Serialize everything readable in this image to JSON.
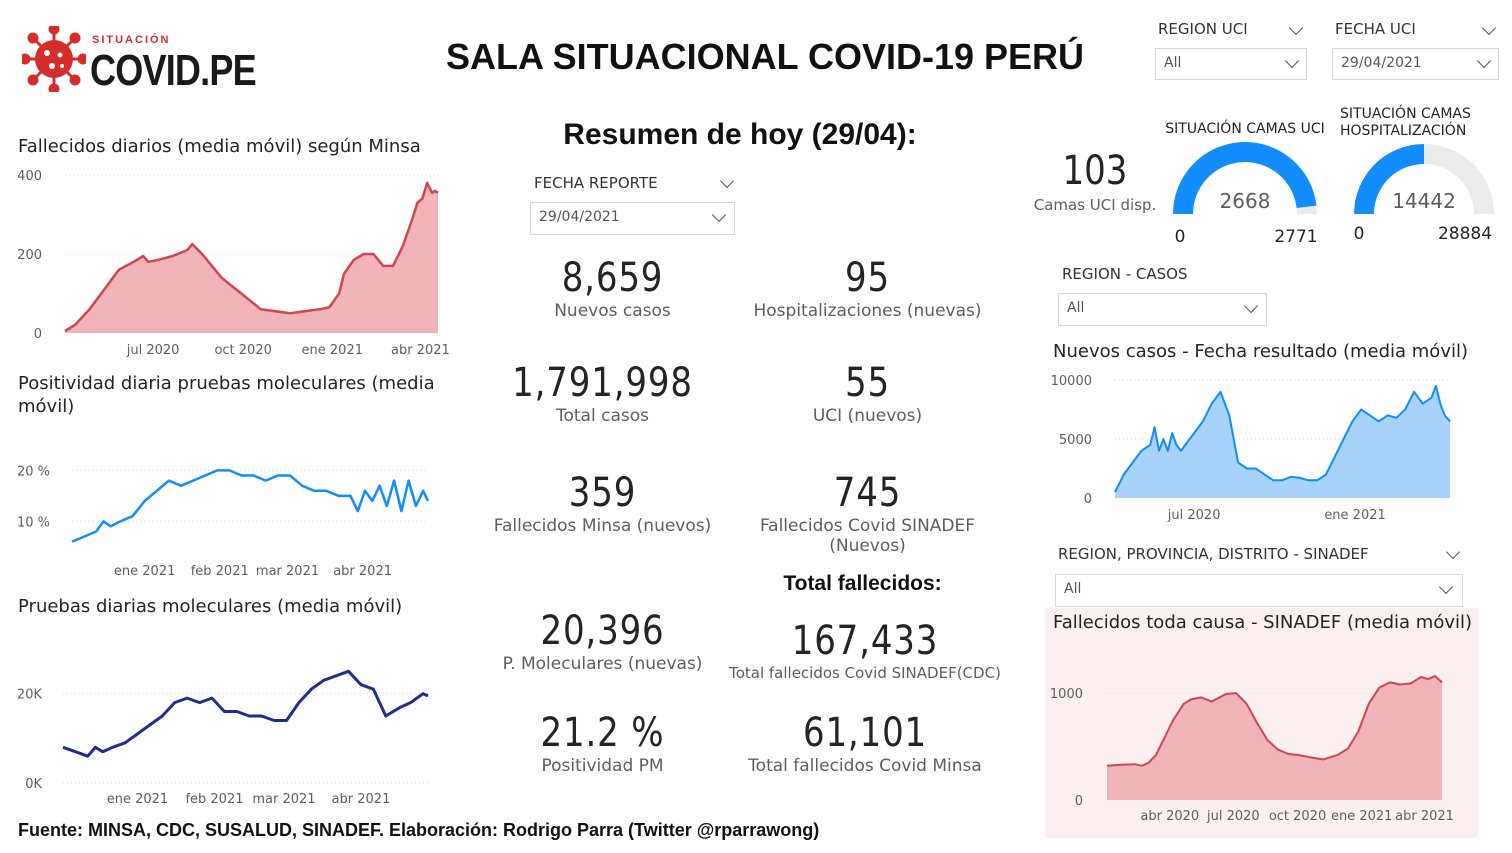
{
  "brand": {
    "small": "SITUACIÓN",
    "big": "COVID.PE"
  },
  "title": "SALA SITUACIONAL COVID-19 PERÚ",
  "slicers": {
    "region_uci": {
      "label": "REGION UCI",
      "value": "All"
    },
    "fecha_uci": {
      "label": "FECHA UCI",
      "value": "29/04/2021"
    },
    "fecha_reporte": {
      "label": "FECHA REPORTE",
      "value": "29/04/2021"
    },
    "region_casos": {
      "label": "REGION - CASOS",
      "value": "All"
    },
    "region_sinadef": {
      "label": "REGION, PROVINCIA, DISTRITO - SINADEF",
      "value": "All"
    }
  },
  "summary": {
    "title": "Resumen de hoy (29/04):",
    "total_title": "Total fallecidos:",
    "kpis": [
      {
        "value": "8,659",
        "label": "Nuevos casos"
      },
      {
        "value": "95",
        "label": "Hospitalizaciones (nuevas)"
      },
      {
        "value": "1,791,998",
        "label": "Total casos"
      },
      {
        "value": "55",
        "label": "UCI (nuevos)"
      },
      {
        "value": "359",
        "label": "Fallecidos Minsa (nuevos)"
      },
      {
        "value": "745",
        "label": "Fallecidos Covid SINADEF (Nuevos)"
      },
      {
        "value": "20,396",
        "label": "P. Moleculares (nuevas)"
      },
      {
        "value": "167,433",
        "label": "Total fallecidos Covid SINADEF(CDC)"
      },
      {
        "value": "21.2 %",
        "label": "Positividad PM"
      },
      {
        "value": "61,101",
        "label": "Total fallecidos Covid Minsa"
      }
    ]
  },
  "uci": {
    "available_value": "103",
    "available_label": "Camas UCI disp.",
    "gauge_uci": {
      "title": "SITUACIÓN CAMAS UCI",
      "value": 2668,
      "min": 0,
      "max": 2771,
      "value_label": "2668",
      "min_label": "0",
      "max_label": "2771"
    },
    "gauge_hosp": {
      "title_1": "SITUACIÓN CAMAS",
      "title_2": "HOSPITALIZACIÓN",
      "value": 14442,
      "min": 0,
      "max": 28884,
      "value_label": "14442",
      "min_label": "0",
      "max_label": "28884"
    }
  },
  "colors": {
    "red_fill": "#f0b4b9",
    "red_line": "#d2464f",
    "blue_light": "#118dff",
    "blue_fill": "#a7d3fb",
    "navy": "#1f2e8f",
    "gauge_blue": "#118dff",
    "gauge_grey": "#ebebeb"
  },
  "footer": "Fuente: MINSA, CDC, SUSALUD, SINADEF. Elaboración: Rodrigo Parra (Twitter @rparrawong)",
  "chart_data": [
    {
      "id": "deaths",
      "type": "area",
      "title": "Fallecidos diarios (media móvil) según Minsa",
      "x_ticks": [
        "jul 2020",
        "oct 2020",
        "ene 2021",
        "abr 2021"
      ],
      "x_tick_pos": [
        90,
        182,
        273,
        363
      ],
      "y_ticks": [
        "400",
        "200",
        "0"
      ],
      "y_tick_vals": [
        400,
        200,
        0
      ],
      "ylim": [
        0,
        400
      ],
      "xlim": [
        0,
        381
      ],
      "x": [
        0,
        10,
        25,
        40,
        55,
        70,
        80,
        85,
        95,
        110,
        125,
        130,
        140,
        150,
        160,
        170,
        185,
        200,
        215,
        230,
        245,
        260,
        270,
        280,
        285,
        295,
        305,
        315,
        325,
        335,
        345,
        355,
        360,
        365,
        370,
        375,
        378,
        381
      ],
      "y": [
        5,
        20,
        60,
        110,
        160,
        180,
        195,
        180,
        185,
        195,
        210,
        225,
        200,
        170,
        140,
        120,
        90,
        60,
        55,
        50,
        55,
        60,
        65,
        100,
        150,
        185,
        200,
        200,
        170,
        170,
        220,
        290,
        330,
        340,
        380,
        355,
        360,
        355
      ]
    },
    {
      "id": "positivity",
      "type": "line",
      "title": "Positividad diaria pruebas moleculares (media móvil)",
      "x_ticks": [
        "ene 2021",
        "feb 2021",
        "mar 2021",
        "abr 2021"
      ],
      "x_tick_pos": [
        30,
        61,
        89,
        120
      ],
      "y_ticks": [
        "20 %",
        "10 %"
      ],
      "y_tick_vals": [
        20,
        10
      ],
      "ylim": [
        3,
        24
      ],
      "xlim": [
        0,
        147
      ],
      "x": [
        0,
        5,
        10,
        13,
        16,
        20,
        25,
        30,
        35,
        40,
        45,
        50,
        55,
        60,
        65,
        70,
        75,
        80,
        85,
        90,
        95,
        100,
        105,
        110,
        115,
        118,
        121,
        124,
        127,
        130,
        133,
        136,
        139,
        142,
        145,
        147
      ],
      "y": [
        6,
        7,
        8,
        10,
        9,
        10,
        11,
        14,
        16,
        18,
        17,
        18,
        19,
        20,
        20,
        19,
        19,
        18,
        19,
        19,
        17,
        16,
        16,
        15,
        15,
        12,
        16,
        14,
        17,
        13,
        18,
        12,
        18,
        13,
        16,
        14
      ]
    },
    {
      "id": "tests",
      "type": "line",
      "title": "Pruebas diarias moleculares (media móvil)",
      "x_ticks": [
        "ene 2021",
        "feb 2021",
        "mar 2021",
        "abr 2021"
      ],
      "x_tick_pos": [
        30,
        61,
        89,
        120
      ],
      "y_ticks": [
        "20K",
        "0K"
      ],
      "y_tick_vals": [
        20000,
        0
      ],
      "ylim": [
        0,
        30000
      ],
      "xlim": [
        0,
        147
      ],
      "x": [
        0,
        5,
        10,
        13,
        16,
        20,
        25,
        30,
        35,
        40,
        45,
        50,
        55,
        60,
        65,
        70,
        75,
        80,
        85,
        90,
        95,
        100,
        105,
        110,
        115,
        120,
        125,
        130,
        133,
        136,
        140,
        145,
        147
      ],
      "y": [
        8000,
        7000,
        6000,
        8000,
        7000,
        8000,
        9000,
        11000,
        13000,
        15000,
        18000,
        19000,
        18000,
        19000,
        16000,
        16000,
        15000,
        15000,
        14000,
        14000,
        18000,
        21000,
        23000,
        24000,
        25000,
        22000,
        21000,
        15000,
        16000,
        17000,
        18000,
        20000,
        19500
      ]
    },
    {
      "id": "cases",
      "type": "area",
      "title": "Nuevos casos - Fecha resultado (media móvil)",
      "x_ticks": [
        "jul 2020",
        "ene 2021"
      ],
      "x_tick_pos": [
        90,
        273
      ],
      "y_ticks": [
        "10000",
        "5000",
        "0"
      ],
      "y_tick_vals": [
        10000,
        5000,
        0
      ],
      "ylim": [
        0,
        10000
      ],
      "xlim": [
        0,
        381
      ],
      "x": [
        0,
        10,
        20,
        30,
        40,
        45,
        50,
        55,
        60,
        65,
        70,
        75,
        80,
        85,
        90,
        100,
        110,
        120,
        125,
        130,
        140,
        150,
        160,
        170,
        180,
        190,
        200,
        210,
        220,
        230,
        240,
        250,
        260,
        270,
        280,
        290,
        300,
        310,
        320,
        330,
        340,
        350,
        360,
        365,
        370,
        375,
        381
      ],
      "y": [
        500,
        2000,
        3000,
        4000,
        4500,
        6000,
        4000,
        5000,
        4000,
        5500,
        4500,
        4000,
        4500,
        5000,
        5500,
        6500,
        8000,
        9000,
        8000,
        7000,
        3000,
        2500,
        2500,
        2000,
        1500,
        1500,
        1800,
        1700,
        1500,
        1500,
        2000,
        3500,
        5000,
        6500,
        7500,
        7000,
        6500,
        7000,
        6800,
        7500,
        9000,
        8000,
        8500,
        9500,
        8000,
        7000,
        6500
      ]
    },
    {
      "id": "sinadef",
      "type": "area",
      "title": "Fallecidos toda causa - SINADEF (media móvil)",
      "x_ticks": [
        "abr 2020",
        "jul 2020",
        "oct 2020",
        "ene 2021",
        "abr 2021"
      ],
      "x_tick_pos": [
        90,
        181,
        273,
        365,
        455
      ],
      "y_ticks": [
        "1000",
        "0"
      ],
      "y_tick_vals": [
        1000,
        0
      ],
      "ylim": [
        0,
        1300
      ],
      "xlim": [
        0,
        480
      ],
      "x": [
        0,
        20,
        40,
        50,
        60,
        70,
        80,
        95,
        110,
        120,
        135,
        150,
        170,
        185,
        200,
        215,
        230,
        245,
        260,
        275,
        290,
        310,
        330,
        345,
        360,
        375,
        390,
        405,
        420,
        435,
        450,
        460,
        470,
        480
      ],
      "y": [
        320,
        330,
        335,
        320,
        350,
        420,
        550,
        750,
        900,
        940,
        960,
        920,
        990,
        1000,
        900,
        720,
        560,
        470,
        430,
        420,
        400,
        380,
        420,
        480,
        640,
        900,
        1050,
        1100,
        1080,
        1090,
        1150,
        1130,
        1160,
        1100
      ]
    }
  ]
}
